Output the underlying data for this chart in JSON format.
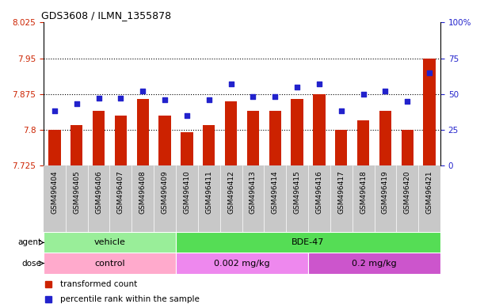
{
  "title": "GDS3608 / ILMN_1355878",
  "samples": [
    "GSM496404",
    "GSM496405",
    "GSM496406",
    "GSM496407",
    "GSM496408",
    "GSM496409",
    "GSM496410",
    "GSM496411",
    "GSM496412",
    "GSM496413",
    "GSM496414",
    "GSM496415",
    "GSM496416",
    "GSM496417",
    "GSM496418",
    "GSM496419",
    "GSM496420",
    "GSM496421"
  ],
  "bar_values": [
    7.8,
    7.81,
    7.84,
    7.83,
    7.865,
    7.83,
    7.795,
    7.81,
    7.86,
    7.84,
    7.84,
    7.865,
    7.875,
    7.8,
    7.82,
    7.84,
    7.8,
    7.95
  ],
  "dot_values": [
    38,
    43,
    47,
    47,
    52,
    46,
    35,
    46,
    57,
    48,
    48,
    55,
    57,
    38,
    50,
    52,
    45,
    65
  ],
  "ymin": 7.725,
  "ymax": 8.025,
  "yticks": [
    7.725,
    7.8,
    7.875,
    7.95,
    8.025
  ],
  "ytick_labels": [
    "7.725",
    "7.8",
    "7.875",
    "7.95",
    "8.025"
  ],
  "y2min": 0,
  "y2max": 100,
  "y2ticks": [
    0,
    25,
    50,
    75,
    100
  ],
  "y2tick_labels": [
    "0",
    "25",
    "50",
    "75",
    "100%"
  ],
  "dotted_lines": [
    7.95,
    7.875,
    7.8
  ],
  "bar_color": "#CC2200",
  "dot_color": "#2222CC",
  "bar_bottom": 7.725,
  "agent_groups": [
    {
      "text": "vehicle",
      "start": 0,
      "end": 5,
      "color": "#99EE99"
    },
    {
      "text": "BDE-47",
      "start": 6,
      "end": 17,
      "color": "#55DD55"
    }
  ],
  "dose_groups": [
    {
      "text": "control",
      "start": 0,
      "end": 5,
      "color": "#FFAACC"
    },
    {
      "text": "0.002 mg/kg",
      "start": 6,
      "end": 11,
      "color": "#EE88EE"
    },
    {
      "text": "0.2 mg/kg",
      "start": 12,
      "end": 17,
      "color": "#CC55CC"
    }
  ],
  "agent_row_label": "agent",
  "dose_row_label": "dose",
  "legend_bar_label": "transformed count",
  "legend_dot_label": "percentile rank within the sample",
  "plot_bg": "#FFFFFF",
  "label_bg": "#C8C8C8",
  "fig_bg": "#FFFFFF"
}
